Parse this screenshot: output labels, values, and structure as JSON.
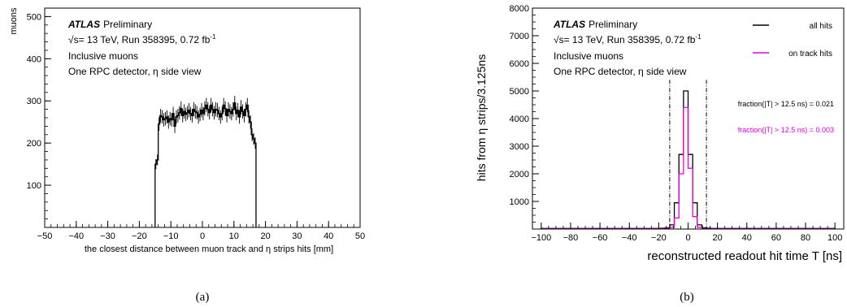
{
  "panels": [
    {
      "caption": "(a)",
      "chart_data": {
        "type": "histogram",
        "xlabel": "the closest distance between muon track and η strips hits [mm]",
        "ylabel": "muons",
        "xlim": [
          -50,
          50
        ],
        "ylim": [
          0,
          520
        ],
        "xticks": [
          -50,
          -40,
          -30,
          -20,
          -10,
          0,
          10,
          20,
          30,
          40,
          50
        ],
        "yticks": [
          100,
          200,
          300,
          400,
          500
        ],
        "annotations": {
          "atlas": "ATLAS",
          "preliminary": "Preliminary",
          "energy": "√s= 13 TeV, Run 358395, 0.72 fb",
          "lumi_exp": "-1",
          "sample": "Inclusive muons",
          "detector": "One RPC detector, η side view"
        },
        "bin_width": 0.5,
        "bin_start": -15,
        "series": [
          {
            "values": [
              150,
              160,
              245,
              265,
              262,
              255,
              258,
              262,
              250,
              258,
              255,
              270,
              240,
              262,
              265,
              272,
              282,
              265,
              275,
              268,
              272,
              278,
              270,
              265,
              280,
              275,
              272,
              262,
              268,
              278,
              270,
              282,
              290,
              280,
              272,
              290,
              280,
              272,
              280,
              278,
              270,
              262,
              270,
              290,
              282,
              265,
              280,
              275,
              270,
              280,
              295,
              270,
              278,
              262,
              285,
              275,
              265,
              280,
              290,
              262,
              250,
              220,
              210,
              200
            ],
            "errors": [
              12,
              13,
              16,
              16,
              16,
              16,
              16,
              16,
              16,
              16,
              16,
              16,
              16,
              16,
              16,
              16,
              17,
              16,
              17,
              16,
              16,
              17,
              16,
              16,
              17,
              17,
              16,
              16,
              16,
              17,
              16,
              17,
              17,
              17,
              16,
              17,
              17,
              16,
              17,
              17,
              16,
              16,
              16,
              17,
              17,
              16,
              17,
              17,
              16,
              17,
              17,
              16,
              17,
              16,
              17,
              17,
              16,
              17,
              17,
              16,
              16,
              15,
              14,
              14
            ],
            "color": "#000000"
          }
        ]
      }
    },
    {
      "caption": "(b)",
      "chart_data": {
        "type": "histogram",
        "xlabel": "reconstructed readout hit time T [ns]",
        "ylabel": "hits from η strips/3.125ns",
        "xlim": [
          -106,
          106
        ],
        "ylim": [
          0,
          8000
        ],
        "xticks": [
          -100,
          -80,
          -60,
          -40,
          -20,
          0,
          20,
          40,
          60,
          80,
          100
        ],
        "yticks": [
          1000,
          2000,
          3000,
          4000,
          5000,
          6000,
          7000,
          8000
        ],
        "annotations": {
          "atlas": "ATLAS",
          "preliminary": "Preliminary",
          "energy": "√s= 13 TeV, Run 358395, 0.72 fb",
          "lumi_exp": "-1",
          "sample": "Inclusive muons",
          "detector": "One RPC detector, η side view",
          "fraction_all": "fraction(|T| > 12.5 ns) = 0.021",
          "fraction_track": "fraction(|T| > 12.5 ns) = 0.003"
        },
        "window_lines": [
          -12.5,
          12.5
        ],
        "bin_width": 3.125,
        "bin_start": -100,
        "series": [
          {
            "name": "all hits",
            "color": "#000000",
            "values": [
              20,
              20,
              20,
              20,
              20,
              20,
              20,
              20,
              20,
              20,
              20,
              20,
              20,
              20,
              20,
              20,
              20,
              20,
              20,
              20,
              20,
              20,
              20,
              20,
              20,
              20,
              30,
              40,
              150,
              950,
              2700,
              5000,
              2700,
              950,
              150,
              40,
              30,
              20,
              20,
              20,
              20,
              20,
              20,
              20,
              20,
              20,
              20,
              20,
              20,
              20,
              20,
              20,
              20,
              20,
              20,
              20,
              20,
              20,
              20,
              20,
              20,
              20,
              20,
              20
            ]
          },
          {
            "name": "on track hits",
            "color": "#e600e6",
            "values": [
              5,
              5,
              5,
              5,
              5,
              5,
              5,
              5,
              5,
              5,
              5,
              5,
              5,
              5,
              5,
              5,
              5,
              5,
              5,
              5,
              5,
              5,
              5,
              5,
              5,
              5,
              5,
              8,
              60,
              400,
              2000,
              4400,
              2200,
              450,
              60,
              8,
              5,
              5,
              5,
              5,
              5,
              5,
              5,
              5,
              5,
              5,
              5,
              5,
              5,
              5,
              5,
              5,
              5,
              5,
              5,
              5,
              5,
              5,
              5,
              5,
              5,
              5,
              5,
              5
            ]
          }
        ]
      }
    }
  ]
}
